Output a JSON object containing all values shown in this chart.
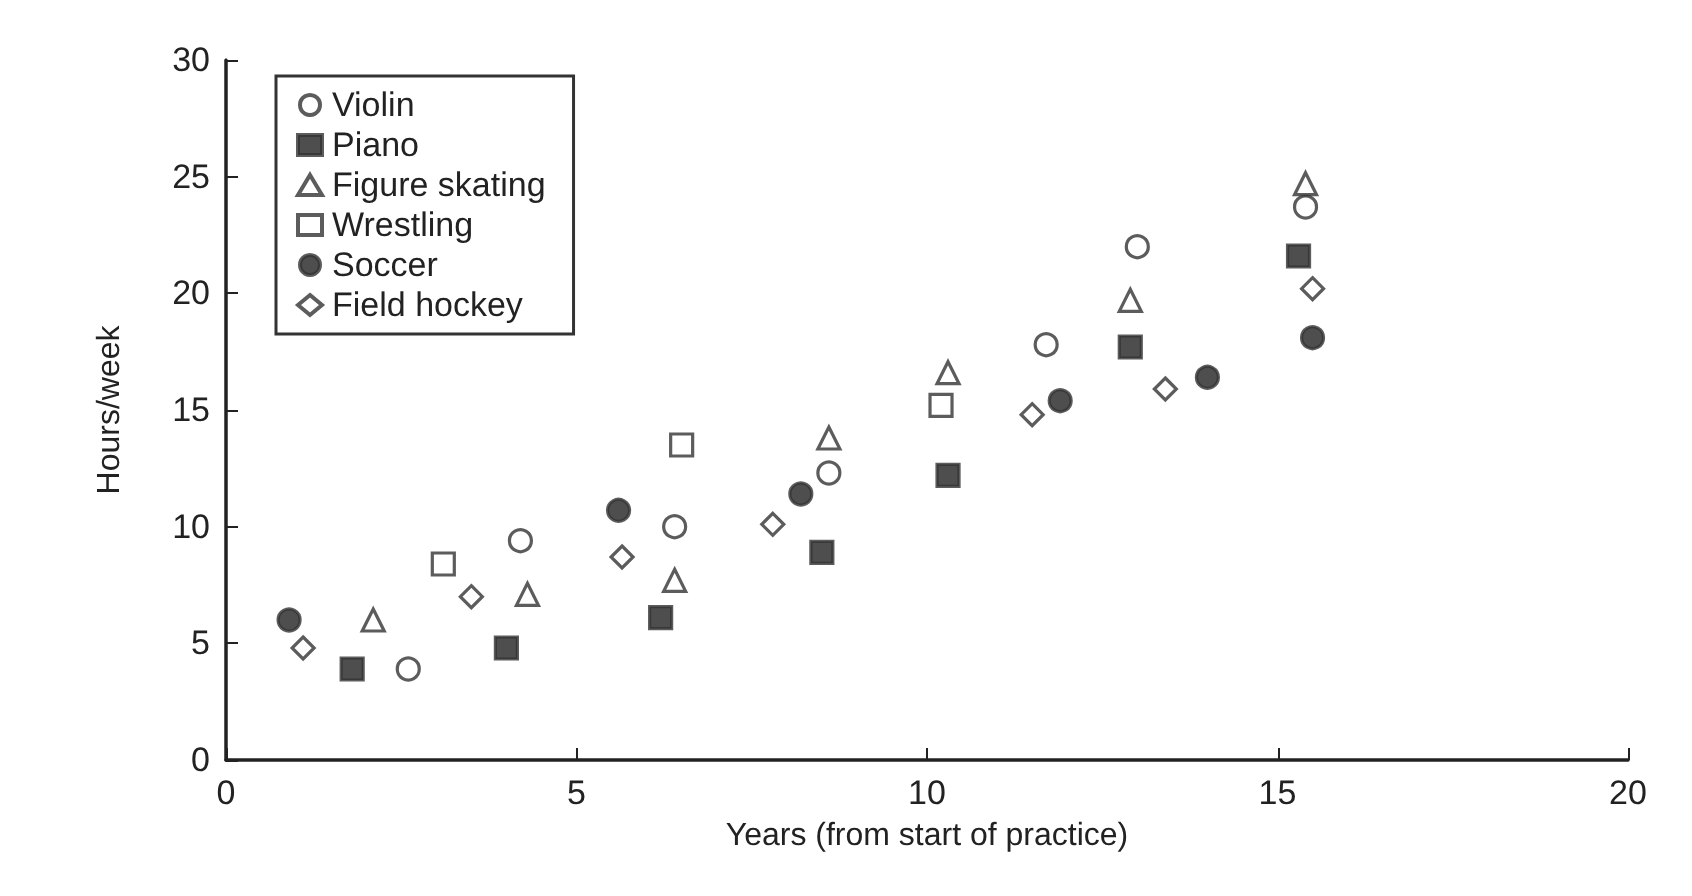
{
  "chart_data": {
    "type": "scatter",
    "xlabel": "Years (from start of practice)",
    "ylabel": "Hours/week",
    "xlim": [
      0,
      20
    ],
    "xticks": [
      0,
      5,
      10,
      15,
      20
    ],
    "ylim": [
      0,
      30
    ],
    "yticks": [
      0,
      5,
      10,
      15,
      20,
      25,
      30
    ],
    "grid": false,
    "legend": "top left",
    "series": [
      {
        "name": "Violin",
        "color": "#ffffff",
        "marker": "circle",
        "x": [
          2.6,
          4.2,
          6.4,
          8.6,
          11.7,
          13,
          15.4
        ],
        "values": [
          3.9,
          9.4,
          10,
          12.3,
          17.8,
          22,
          23.7
        ]
      },
      {
        "name": "Piano",
        "color": "#222222",
        "marker": "square",
        "x": [
          1.8,
          4.0,
          6.2,
          8.5,
          10.3,
          12.9,
          15.3
        ],
        "values": [
          3.9,
          4.8,
          6.1,
          8.9,
          12.2,
          17.7,
          21.6
        ]
      },
      {
        "name": "Figure skating",
        "color": "#ffffff",
        "marker": "triangle",
        "x": [
          2.1,
          4.3,
          6.4,
          8.6,
          10.3,
          12.9,
          15.4
        ],
        "values": [
          6,
          7.1,
          7.7,
          13.8,
          16.6,
          19.7,
          24.7
        ]
      },
      {
        "name": "Wrestling",
        "color": "#ffffff",
        "marker": "square",
        "x": [
          3.1,
          6.5,
          10.2
        ],
        "values": [
          8.4,
          13.5,
          15.2
        ]
      },
      {
        "name": "Soccer",
        "color": "#222222",
        "marker": "circle",
        "x": [
          0.9,
          5.6,
          8.2,
          11.9,
          14.0,
          15.5
        ],
        "values": [
          6,
          10.7,
          11.4,
          15.4,
          16.4,
          18.1
        ]
      },
      {
        "name": "Field hockey",
        "color": "#ffffff",
        "marker": "diamond",
        "x": [
          1.1,
          3.5,
          5.65,
          7.8,
          11.5,
          13.4,
          15.5
        ],
        "values": [
          4.8,
          7.0,
          8.7,
          10.1,
          14.8,
          15.9,
          20.2
        ]
      }
    ]
  }
}
